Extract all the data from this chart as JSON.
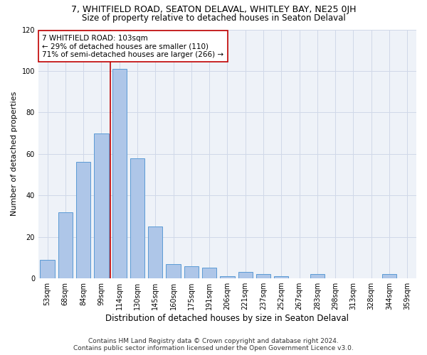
{
  "title_line1": "7, WHITFIELD ROAD, SEATON DELAVAL, WHITLEY BAY, NE25 0JH",
  "title_line2": "Size of property relative to detached houses in Seaton Delaval",
  "xlabel": "Distribution of detached houses by size in Seaton Delaval",
  "ylabel": "Number of detached properties",
  "categories": [
    "53sqm",
    "68sqm",
    "84sqm",
    "99sqm",
    "114sqm",
    "130sqm",
    "145sqm",
    "160sqm",
    "175sqm",
    "191sqm",
    "206sqm",
    "221sqm",
    "237sqm",
    "252sqm",
    "267sqm",
    "283sqm",
    "298sqm",
    "313sqm",
    "328sqm",
    "344sqm",
    "359sqm"
  ],
  "values": [
    9,
    32,
    56,
    70,
    101,
    58,
    25,
    7,
    6,
    5,
    1,
    3,
    2,
    1,
    0,
    2,
    0,
    0,
    0,
    2,
    0
  ],
  "bar_color": "#aec6e8",
  "bar_edge_color": "#5b9bd5",
  "annotation_text": "7 WHITFIELD ROAD: 103sqm\n← 29% of detached houses are smaller (110)\n71% of semi-detached houses are larger (266) →",
  "annotation_box_color": "#ffffff",
  "annotation_box_edge_color": "#c00000",
  "red_line_x": 3.5,
  "ylim": [
    0,
    120
  ],
  "yticks": [
    0,
    20,
    40,
    60,
    80,
    100,
    120
  ],
  "grid_color": "#d0d8e8",
  "background_color": "#eef2f8",
  "footer_line1": "Contains HM Land Registry data © Crown copyright and database right 2024.",
  "footer_line2": "Contains public sector information licensed under the Open Government Licence v3.0.",
  "title_fontsize": 9,
  "subtitle_fontsize": 8.5,
  "xlabel_fontsize": 8.5,
  "ylabel_fontsize": 8,
  "tick_fontsize": 7,
  "annotation_fontsize": 7.5,
  "footer_fontsize": 6.5
}
